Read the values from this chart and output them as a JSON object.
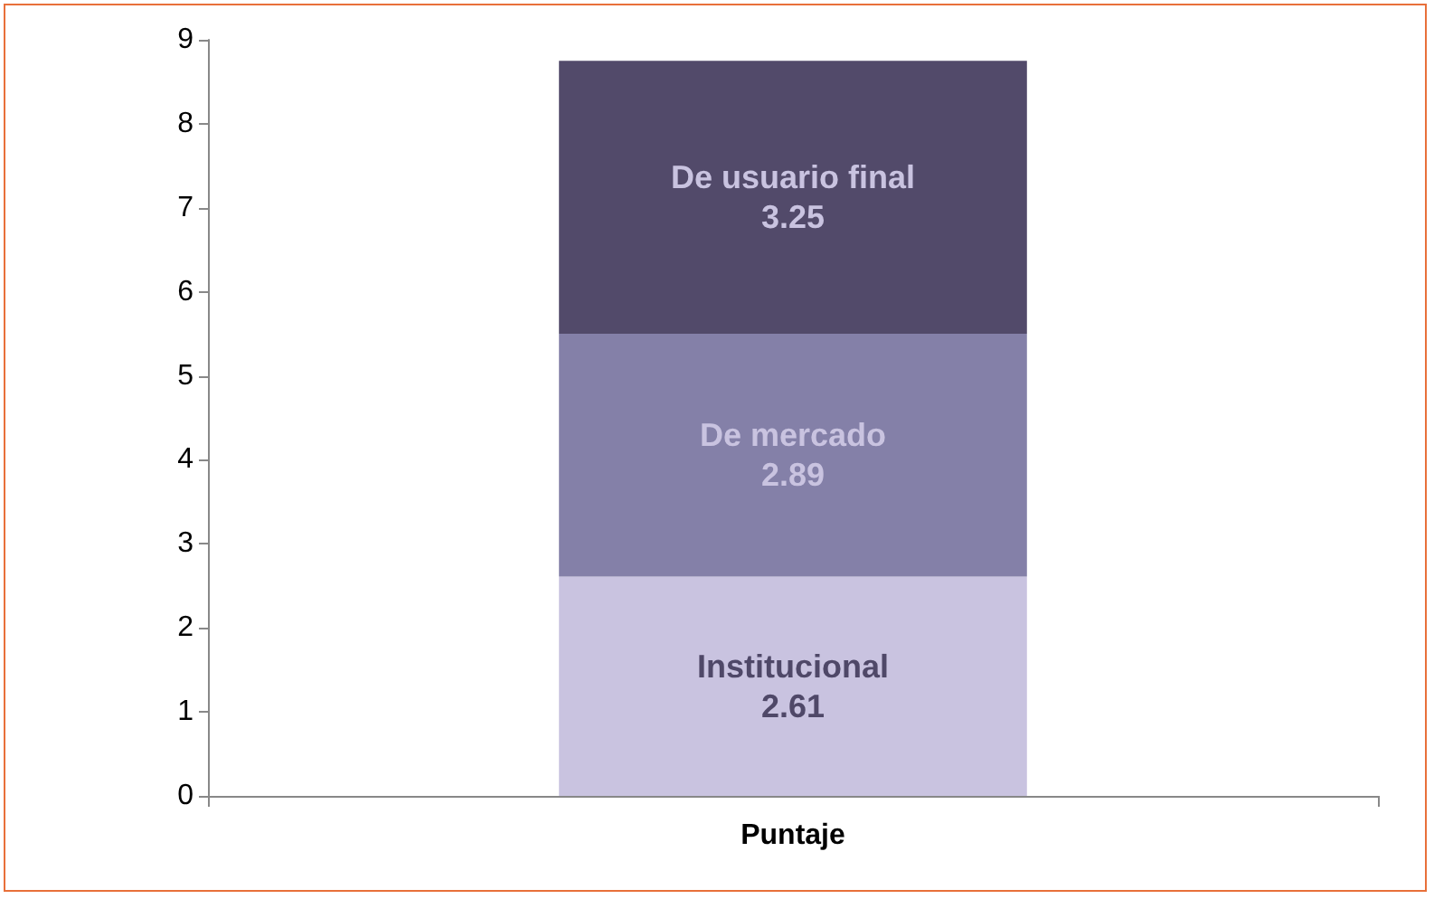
{
  "chart_data": {
    "type": "bar",
    "stacked": true,
    "categories": [
      "Puntaje"
    ],
    "series": [
      {
        "name": "Institucional",
        "color": "#c9c3e0",
        "values": [
          2.61
        ]
      },
      {
        "name": "De mercado",
        "color": "#8480a8",
        "values": [
          2.89
        ]
      },
      {
        "name": "De usuario final",
        "color": "#524a6a",
        "values": [
          3.25
        ]
      }
    ],
    "ylim": [
      0,
      9
    ],
    "yticks": [
      0,
      1,
      2,
      3,
      4,
      5,
      6,
      7,
      8,
      9
    ],
    "grid": false,
    "legend": false,
    "data_labels": true
  }
}
